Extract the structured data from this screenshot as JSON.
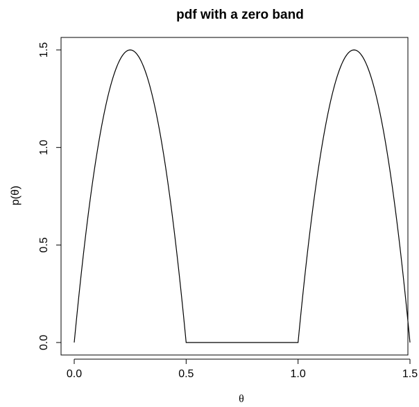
{
  "chart_data": {
    "type": "line",
    "title": "pdf with a zero band",
    "xlabel": "θ",
    "ylabel": "p(θ)",
    "xlim": [
      0,
      1.5
    ],
    "ylim": [
      0,
      1.5
    ],
    "xticks": [
      {
        "value": 0.0,
        "label": "0.0"
      },
      {
        "value": 0.5,
        "label": "0.5"
      },
      {
        "value": 1.0,
        "label": "1.0"
      },
      {
        "value": 1.5,
        "label": "1.5"
      }
    ],
    "yticks": [
      {
        "value": 0.0,
        "label": "0.0"
      },
      {
        "value": 0.5,
        "label": "0.5"
      },
      {
        "value": 1.0,
        "label": "1.0"
      },
      {
        "value": 1.5,
        "label": "1.5"
      }
    ],
    "grid": false,
    "legend": "none",
    "line_color": "#000000",
    "series": [
      {
        "x": [
          0.0,
          0.05,
          0.1,
          0.15,
          0.2,
          0.25,
          0.3,
          0.35,
          0.4,
          0.45,
          0.5,
          0.6,
          0.7,
          0.8,
          0.9,
          1.0,
          1.05,
          1.1,
          1.15,
          1.2,
          1.25,
          1.3,
          1.35,
          1.4,
          1.45,
          1.5
        ],
        "y": [
          0.0,
          0.54,
          0.96,
          1.26,
          1.44,
          1.5,
          1.44,
          1.26,
          0.96,
          0.54,
          0.0,
          0.0,
          0.0,
          0.0,
          0.0,
          0.0,
          0.54,
          0.96,
          1.26,
          1.44,
          1.5,
          1.44,
          1.26,
          0.96,
          0.54,
          0.0
        ]
      }
    ]
  }
}
